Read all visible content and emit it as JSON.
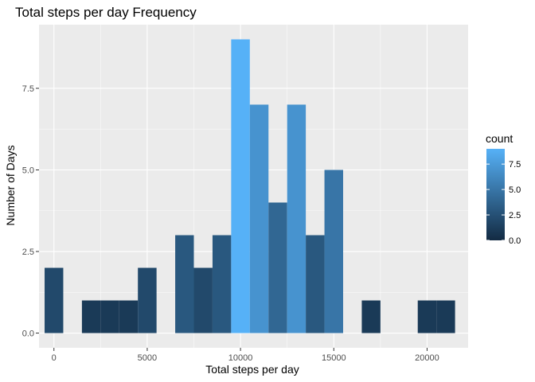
{
  "chart_data": {
    "type": "bar",
    "title": "Total steps per day Frequency",
    "xlabel": "Total steps per day",
    "ylabel": "Number of Days",
    "xlim": [
      -800,
      22200
    ],
    "ylim": [
      -0.45,
      9.45
    ],
    "x_ticks": [
      {
        "value": 0,
        "label": "0"
      },
      {
        "value": 5000,
        "label": "5000"
      },
      {
        "value": 10000,
        "label": "10000"
      },
      {
        "value": 15000,
        "label": "15000"
      },
      {
        "value": 20000,
        "label": "20000"
      }
    ],
    "y_ticks": [
      {
        "value": 0,
        "label": "0.0"
      },
      {
        "value": 2.5,
        "label": "2.5"
      },
      {
        "value": 5,
        "label": "5.0"
      },
      {
        "value": 7.5,
        "label": "7.5"
      }
    ],
    "grid": true,
    "background": "#ebebeb",
    "bin_width": 1000,
    "bins": [
      {
        "x": 0,
        "count": 2
      },
      {
        "x": 2000,
        "count": 1
      },
      {
        "x": 3000,
        "count": 1
      },
      {
        "x": 4000,
        "count": 1
      },
      {
        "x": 5000,
        "count": 2
      },
      {
        "x": 7000,
        "count": 3
      },
      {
        "x": 8000,
        "count": 2
      },
      {
        "x": 9000,
        "count": 3
      },
      {
        "x": 10000,
        "count": 9
      },
      {
        "x": 11000,
        "count": 7
      },
      {
        "x": 12000,
        "count": 4
      },
      {
        "x": 13000,
        "count": 7
      },
      {
        "x": 14000,
        "count": 3
      },
      {
        "x": 15000,
        "count": 5
      },
      {
        "x": 17000,
        "count": 1
      },
      {
        "x": 20000,
        "count": 1
      },
      {
        "x": 21000,
        "count": 1
      }
    ],
    "legend": {
      "title": "count",
      "position": "right",
      "range": [
        0,
        9
      ],
      "low_color": "#132B43",
      "high_color": "#56B1F7",
      "ticks": [
        {
          "value": 0,
          "label": "0.0"
        },
        {
          "value": 2.5,
          "label": "2.5"
        },
        {
          "value": 5,
          "label": "5.0"
        },
        {
          "value": 7.5,
          "label": "7.5"
        }
      ]
    }
  }
}
